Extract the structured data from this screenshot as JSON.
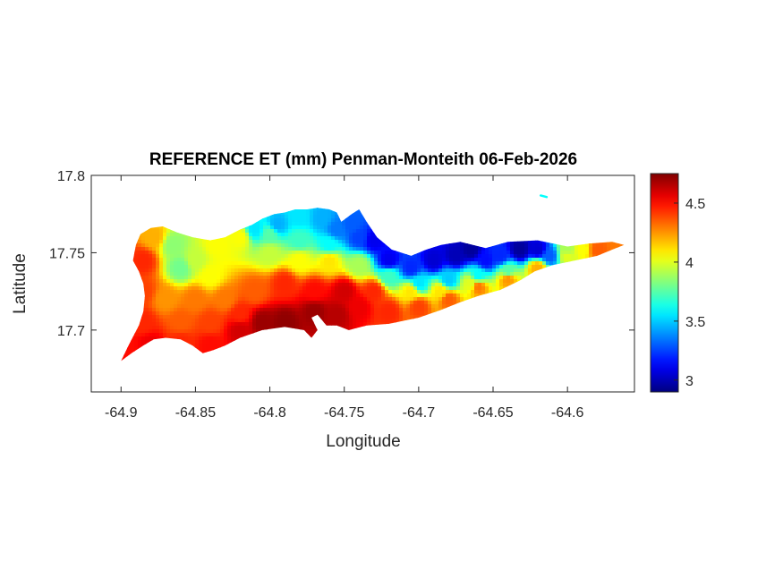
{
  "chart_data": {
    "type": "heatmap",
    "title": "REFERENCE ET (mm) Penman-Monteith 06-Feb-2026",
    "xlabel": "Longitude",
    "ylabel": "Latitude",
    "xlim": [
      -64.92,
      -64.555
    ],
    "ylim": [
      17.66,
      17.8
    ],
    "xticks": [
      -64.9,
      -64.85,
      -64.8,
      -64.75,
      -64.7,
      -64.65,
      -64.6
    ],
    "xtick_labels": [
      "-64.9",
      "-64.85",
      "-64.8",
      "-64.75",
      "-64.7",
      "-64.65",
      "-64.6"
    ],
    "yticks": [
      17.7,
      17.75,
      17.8
    ],
    "ytick_labels": [
      "17.7",
      "17.75",
      "17.8"
    ],
    "colormap": "jet",
    "clim": [
      2.9,
      4.75
    ],
    "colorbar_ticks": [
      3,
      3.5,
      4,
      4.5
    ],
    "colorbar_tick_labels": [
      "3",
      "3.5",
      "4",
      "4.5"
    ],
    "grid": false,
    "island_outline_lonlat": [
      [
        -64.9,
        17.68
      ],
      [
        -64.893,
        17.685
      ],
      [
        -64.885,
        17.69
      ],
      [
        -64.878,
        17.694
      ],
      [
        -64.87,
        17.695
      ],
      [
        -64.86,
        17.694
      ],
      [
        -64.852,
        17.69
      ],
      [
        -64.845,
        17.685
      ],
      [
        -64.838,
        17.687
      ],
      [
        -64.83,
        17.69
      ],
      [
        -64.82,
        17.695
      ],
      [
        -64.805,
        17.7
      ],
      [
        -64.79,
        17.702
      ],
      [
        -64.777,
        17.7
      ],
      [
        -64.772,
        17.695
      ],
      [
        -64.768,
        17.7
      ],
      [
        -64.772,
        17.708
      ],
      [
        -64.768,
        17.71
      ],
      [
        -64.762,
        17.703
      ],
      [
        -64.755,
        17.703
      ],
      [
        -64.747,
        17.7
      ],
      [
        -64.735,
        17.703
      ],
      [
        -64.72,
        17.704
      ],
      [
        -64.7,
        17.708
      ],
      [
        -64.685,
        17.713
      ],
      [
        -64.672,
        17.718
      ],
      [
        -64.66,
        17.722
      ],
      [
        -64.645,
        17.726
      ],
      [
        -64.632,
        17.732
      ],
      [
        -64.622,
        17.738
      ],
      [
        -64.61,
        17.742
      ],
      [
        -64.595,
        17.745
      ],
      [
        -64.58,
        17.748
      ],
      [
        -64.57,
        17.752
      ],
      [
        -64.562,
        17.755
      ],
      [
        -64.57,
        17.757
      ],
      [
        -64.585,
        17.756
      ],
      [
        -64.6,
        17.754
      ],
      [
        -64.62,
        17.758
      ],
      [
        -64.64,
        17.757
      ],
      [
        -64.655,
        17.753
      ],
      [
        -64.672,
        17.757
      ],
      [
        -64.685,
        17.755
      ],
      [
        -64.695,
        17.752
      ],
      [
        -64.705,
        17.748
      ],
      [
        -64.718,
        17.752
      ],
      [
        -64.728,
        17.76
      ],
      [
        -64.735,
        17.77
      ],
      [
        -64.74,
        17.778
      ],
      [
        -64.745,
        17.775
      ],
      [
        -64.752,
        17.77
      ],
      [
        -64.755,
        17.776
      ],
      [
        -64.76,
        17.778
      ],
      [
        -64.768,
        17.779
      ],
      [
        -64.775,
        17.778
      ],
      [
        -64.783,
        17.778
      ],
      [
        -64.79,
        17.776
      ],
      [
        -64.797,
        17.775
      ],
      [
        -64.805,
        17.772
      ],
      [
        -64.812,
        17.768
      ],
      [
        -64.82,
        17.765
      ],
      [
        -64.83,
        17.76
      ],
      [
        -64.84,
        17.758
      ],
      [
        -64.852,
        17.76
      ],
      [
        -64.862,
        17.763
      ],
      [
        -64.872,
        17.767
      ],
      [
        -64.88,
        17.766
      ],
      [
        -64.887,
        17.762
      ],
      [
        -64.89,
        17.755
      ],
      [
        -64.892,
        17.745
      ],
      [
        -64.888,
        17.738
      ],
      [
        -64.885,
        17.73
      ],
      [
        -64.884,
        17.722
      ],
      [
        -64.885,
        17.712
      ],
      [
        -64.888,
        17.703
      ],
      [
        -64.895,
        17.69
      ]
    ],
    "small_islet_lonlat": [
      [
        -64.618,
        17.787
      ],
      [
        -64.614,
        17.786
      ]
    ],
    "et_field": {
      "description": "reference ET values (mm) at sample points, interpolated for rendering",
      "points": [
        [
          -64.895,
          17.685,
          4.5
        ],
        [
          -64.88,
          17.69,
          4.55
        ],
        [
          -64.86,
          17.692,
          4.45
        ],
        [
          -64.84,
          17.69,
          4.5
        ],
        [
          -64.82,
          17.7,
          4.6
        ],
        [
          -64.805,
          17.705,
          4.7
        ],
        [
          -64.79,
          17.705,
          4.72
        ],
        [
          -64.77,
          17.712,
          4.7
        ],
        [
          -64.755,
          17.71,
          4.65
        ],
        [
          -64.74,
          17.715,
          4.55
        ],
        [
          -64.72,
          17.712,
          4.45
        ],
        [
          -64.7,
          17.715,
          4.4
        ],
        [
          -64.68,
          17.72,
          4.35
        ],
        [
          -64.66,
          17.728,
          4.3
        ],
        [
          -64.64,
          17.733,
          4.25
        ],
        [
          -64.62,
          17.74,
          4.2
        ],
        [
          -64.6,
          17.748,
          4.0
        ],
        [
          -64.58,
          17.752,
          4.35
        ],
        [
          -64.565,
          17.755,
          4.3
        ],
        [
          -64.885,
          17.705,
          4.45
        ],
        [
          -64.885,
          17.725,
          4.4
        ],
        [
          -64.885,
          17.745,
          4.45
        ],
        [
          -64.878,
          17.76,
          4.2
        ],
        [
          -64.865,
          17.755,
          3.85
        ],
        [
          -64.86,
          17.74,
          3.8
        ],
        [
          -64.85,
          17.745,
          3.95
        ],
        [
          -64.84,
          17.735,
          4.05
        ],
        [
          -64.835,
          17.755,
          4.05
        ],
        [
          -64.82,
          17.76,
          4.05
        ],
        [
          -64.87,
          17.72,
          4.25
        ],
        [
          -64.85,
          17.72,
          4.3
        ],
        [
          -64.83,
          17.72,
          4.3
        ],
        [
          -64.81,
          17.725,
          4.35
        ],
        [
          -64.79,
          17.73,
          4.45
        ],
        [
          -64.77,
          17.725,
          4.5
        ],
        [
          -64.75,
          17.725,
          4.6
        ],
        [
          -64.73,
          17.725,
          4.45
        ],
        [
          -64.84,
          17.705,
          4.4
        ],
        [
          -64.86,
          17.705,
          4.35
        ],
        [
          -64.82,
          17.71,
          4.45
        ],
        [
          -64.81,
          17.765,
          3.55
        ],
        [
          -64.795,
          17.768,
          3.45
        ],
        [
          -64.78,
          17.773,
          3.55
        ],
        [
          -64.765,
          17.772,
          3.45
        ],
        [
          -64.755,
          17.765,
          3.35
        ],
        [
          -64.745,
          17.768,
          3.3
        ],
        [
          -64.74,
          17.76,
          3.25
        ],
        [
          -64.73,
          17.758,
          3.1
        ],
        [
          -64.72,
          17.745,
          3.1
        ],
        [
          -64.705,
          17.74,
          3.2
        ],
        [
          -64.69,
          17.745,
          3.05
        ],
        [
          -64.675,
          17.748,
          3.0
        ],
        [
          -64.665,
          17.752,
          2.95
        ],
        [
          -64.655,
          17.745,
          3.15
        ],
        [
          -64.645,
          17.748,
          3.2
        ],
        [
          -64.632,
          17.752,
          2.95
        ],
        [
          -64.62,
          17.752,
          3.05
        ],
        [
          -64.612,
          17.748,
          3.3
        ],
        [
          -64.6,
          17.752,
          3.9
        ],
        [
          -64.59,
          17.752,
          4.05
        ],
        [
          -64.8,
          17.75,
          3.95
        ],
        [
          -64.78,
          17.745,
          4.05
        ],
        [
          -64.76,
          17.745,
          4.1
        ],
        [
          -64.74,
          17.742,
          3.9
        ],
        [
          -64.72,
          17.735,
          3.7
        ],
        [
          -64.7,
          17.73,
          3.55
        ],
        [
          -64.68,
          17.732,
          3.5
        ],
        [
          -64.66,
          17.735,
          3.6
        ],
        [
          -64.64,
          17.738,
          3.75
        ],
        [
          -64.76,
          17.755,
          3.6
        ],
        [
          -64.78,
          17.758,
          3.7
        ],
        [
          -64.8,
          17.762,
          3.75
        ],
        [
          -64.705,
          17.725,
          4.1
        ],
        [
          -64.685,
          17.725,
          4.1
        ],
        [
          -64.665,
          17.73,
          4.0
        ],
        [
          -64.616,
          17.787,
          3.6
        ]
      ]
    }
  }
}
